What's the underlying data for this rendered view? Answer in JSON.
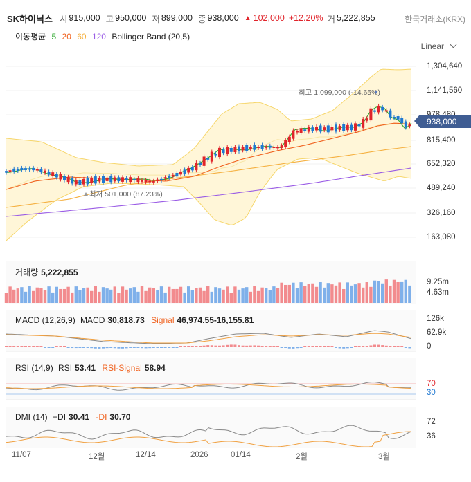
{
  "header": {
    "name": "SK하이닉스",
    "open_label": "시",
    "open": "915,000",
    "high_label": "고",
    "high": "950,000",
    "low_label": "저",
    "low": "899,000",
    "close_label": "종",
    "close": "938,000",
    "change_arrow": "▲",
    "change": "102,000",
    "change_pct": "+12.20%",
    "volume_label": "거",
    "volume": "5,222,855",
    "exchange": "한국거래소(KRX)"
  },
  "indicators": {
    "ma_label": "이동평균",
    "ma5": "5",
    "ma20": "20",
    "ma60": "60",
    "ma120": "120",
    "bb_label": "Bollinger Band (20,5)"
  },
  "scale": {
    "mode": "Linear",
    "mode_icon": "chevron-down-icon"
  },
  "price_axis": [
    "1,304,640",
    "1,141,560",
    "978,480",
    "815,400",
    "652,320",
    "489,240",
    "326,160",
    "163,080"
  ],
  "current_price_tag": "938,000",
  "annotations": {
    "high": "최고 1,099,000 (-14.65%)",
    "low": "최저 501,000 (87.23%)"
  },
  "volume_panel": {
    "label": "거래량",
    "value": "5,222,855",
    "axis": [
      "9.25m",
      "4.63m"
    ]
  },
  "macd_panel": {
    "label": "MACD (12,26,9)",
    "macd_label": "MACD",
    "macd_value": "30,818.73",
    "signal_label": "Signal",
    "signal_value": "46,974.55",
    "hist_value": "-16,155.81",
    "axis": [
      "126k",
      "62.9k",
      "0"
    ]
  },
  "rsi_panel": {
    "label": "RSI (14,9)",
    "rsi_label": "RSI",
    "rsi_value": "53.41",
    "signal_label": "RSI-Signal",
    "signal_value": "58.94",
    "axis": [
      "70",
      "30"
    ]
  },
  "dmi_panel": {
    "label": "DMI (14)",
    "pdi_label": "+DI",
    "pdi_value": "30.41",
    "mdi_label": "-DI",
    "mdi_value": "30.70",
    "axis": [
      "72",
      "36"
    ]
  },
  "x_axis": [
    "11/07",
    "12월",
    "12/14",
    "2026",
    "01/14",
    "2월",
    "3월"
  ],
  "colors": {
    "up": "#e0242b",
    "down": "#1f78d1",
    "ma5": "#2da82d",
    "ma20": "#f0621f",
    "ma60": "#f5b142",
    "ma120": "#9a5ce5",
    "bb_fill": "#fff6d8",
    "bb_line": "#f6d66b",
    "price_tag": "#3f5d93"
  }
}
